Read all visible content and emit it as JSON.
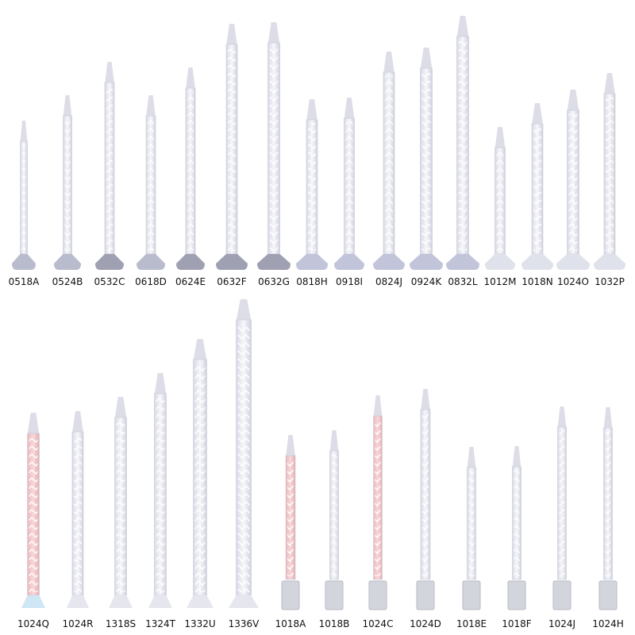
{
  "rows": [
    {
      "items": [
        {
          "label": "0518A"
        },
        {
          "label": "0524B"
        },
        {
          "label": "0532C"
        },
        {
          "label": "0618D"
        },
        {
          "label": "0624E"
        },
        {
          "label": "0632F"
        },
        {
          "label": "0632G"
        },
        {
          "label": "0818H"
        },
        {
          "label": "0918I"
        },
        {
          "label": "0824J"
        },
        {
          "label": "0924K"
        },
        {
          "label": "0832L"
        },
        {
          "label": "1012M"
        },
        {
          "label": "1018N"
        },
        {
          "label": "1024O"
        },
        {
          "label": "1032P"
        }
      ]
    },
    {
      "items": [
        {
          "label": "1024Q"
        },
        {
          "label": "1024R"
        },
        {
          "label": "1318S"
        },
        {
          "label": "1324T"
        },
        {
          "label": "1332U"
        },
        {
          "label": "1336V"
        },
        {
          "label": "1018A"
        },
        {
          "label": "1018B"
        },
        {
          "label": "1024C"
        },
        {
          "label": "1024D"
        },
        {
          "label": "1018E"
        },
        {
          "label": "1018F"
        },
        {
          "label": "1024J"
        },
        {
          "label": "1024H"
        }
      ]
    }
  ]
}
